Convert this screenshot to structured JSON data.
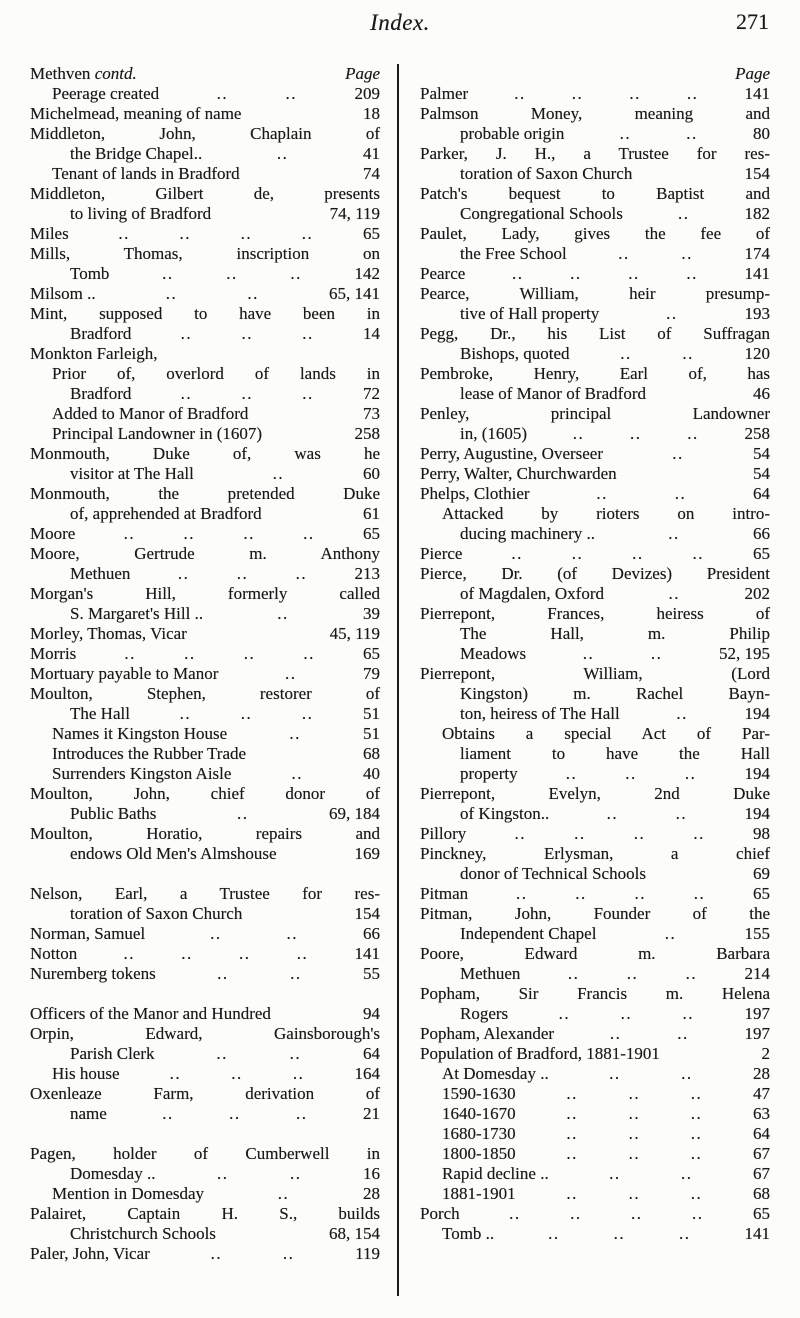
{
  "header": {
    "title": "Index.",
    "page_number": "271"
  },
  "columns": [
    {
      "side": "left",
      "heading": {
        "name": "Methven ",
        "contd": "contd.",
        "page_label": "Page"
      },
      "entries": [
        {
          "t": "Peerage created",
          "i": 1,
          "d": 2,
          "p": "209"
        },
        {
          "t": "Michelmead, meaning of name",
          "i": 0,
          "d": 0,
          "p": "18"
        },
        {
          "t": "Middleton, John, Chaplain of",
          "i": 0,
          "j": 1
        },
        {
          "t": "the Bridge Chapel..",
          "i": 2,
          "d": 1,
          "p": "41"
        },
        {
          "t": "Tenant of lands in Bradford",
          "i": 1,
          "d": 0,
          "p": "74"
        },
        {
          "t": "Middleton, Gilbert de, presents",
          "i": 0,
          "j": 1
        },
        {
          "t": "to living of Bradford",
          "i": 2,
          "d": 0,
          "p": "74, 119"
        },
        {
          "t": "Miles",
          "i": 0,
          "d": 4,
          "p": "65"
        },
        {
          "t": "Mills, Thomas, inscription on",
          "i": 0,
          "j": 1
        },
        {
          "t": "Tomb",
          "i": 2,
          "d": 3,
          "p": "142"
        },
        {
          "t": "Milsom ..",
          "i": 0,
          "d": 2,
          "p": "65, 141"
        },
        {
          "t": "Mint, supposed to have been in",
          "i": 0,
          "j": 1
        },
        {
          "t": "Bradford",
          "i": 2,
          "d": 3,
          "p": "14"
        },
        {
          "t": "Monkton Farleigh,",
          "i": 0
        },
        {
          "t": "Prior of, overlord of lands in",
          "i": 1,
          "j": 1
        },
        {
          "t": "Bradford",
          "i": 2,
          "d": 3,
          "p": "72"
        },
        {
          "t": "Added to Manor of Bradford",
          "i": 1,
          "d": 0,
          "p": "73"
        },
        {
          "t": "Principal Landowner in (1607)",
          "i": 1,
          "d": 0,
          "p": "258"
        },
        {
          "t": "Monmouth, Duke of, was he",
          "i": 0,
          "j": 1
        },
        {
          "t": "visitor at The Hall",
          "i": 2,
          "d": 1,
          "p": "60"
        },
        {
          "t": "Monmouth, the pretended Duke",
          "i": 0,
          "j": 1
        },
        {
          "t": "of, apprehended at Bradford",
          "i": 2,
          "d": 0,
          "p": "61"
        },
        {
          "t": "Moore",
          "i": 0,
          "d": 4,
          "p": "65"
        },
        {
          "t": "Moore, Gertrude m. Anthony",
          "i": 0,
          "j": 1
        },
        {
          "t": "Methuen",
          "i": 2,
          "d": 3,
          "p": "213"
        },
        {
          "t": "Morgan's Hill, formerly called",
          "i": 0,
          "j": 1
        },
        {
          "t": "S. Margaret's Hill ..",
          "i": 2,
          "d": 1,
          "p": "39"
        },
        {
          "t": "Morley, Thomas, Vicar",
          "i": 0,
          "d": 0,
          "p": "45, 119"
        },
        {
          "t": "Morris",
          "i": 0,
          "d": 4,
          "p": "65"
        },
        {
          "t": "Mortuary payable to Manor",
          "i": 0,
          "d": 1,
          "p": "79"
        },
        {
          "t": "Moulton, Stephen, restorer of",
          "i": 0,
          "j": 1
        },
        {
          "t": "The Hall",
          "i": 2,
          "d": 3,
          "p": "51"
        },
        {
          "t": "Names it Kingston House",
          "i": 1,
          "d": 1,
          "p": "51"
        },
        {
          "t": "Introduces the Rubber Trade",
          "i": 1,
          "d": 0,
          "p": "68"
        },
        {
          "t": "Surrenders Kingston Aisle",
          "i": 1,
          "d": 1,
          "p": "40"
        },
        {
          "t": "Moulton, John, chief donor of",
          "i": 0,
          "j": 1
        },
        {
          "t": "Public Baths",
          "i": 2,
          "d": 1,
          "p": "69, 184"
        },
        {
          "t": "Moulton, Horatio, repairs and",
          "i": 0,
          "j": 1
        },
        {
          "t": "endows Old Men's Almshouse",
          "i": 2,
          "d": 0,
          "p": "169"
        },
        {
          "gap": true
        },
        {
          "t": "Nelson, Earl, a Trustee for res-",
          "i": 0,
          "j": 1
        },
        {
          "t": "toration of Saxon Church",
          "i": 2,
          "d": 0,
          "p": "154"
        },
        {
          "t": "Norman, Samuel",
          "i": 0,
          "d": 2,
          "p": "66"
        },
        {
          "t": "Notton",
          "i": 0,
          "d": 4,
          "p": "141"
        },
        {
          "t": "Nuremberg tokens",
          "i": 0,
          "d": 2,
          "p": "55"
        },
        {
          "gap": true
        },
        {
          "t": "Officers of the Manor and Hundred",
          "i": 0,
          "d": 0,
          "p": "94"
        },
        {
          "t": "Orpin, Edward, Gainsborough's",
          "i": 0,
          "j": 1
        },
        {
          "t": "Parish Clerk",
          "i": 2,
          "d": 2,
          "p": "64"
        },
        {
          "t": "His house",
          "i": 1,
          "d": 3,
          "p": "164"
        },
        {
          "t": "Oxenleaze Farm, derivation of",
          "i": 0,
          "j": 1
        },
        {
          "t": "name",
          "i": 2,
          "d": 3,
          "p": "21"
        },
        {
          "gap": true
        },
        {
          "t": "Pagen, holder of Cumberwell in",
          "i": 0,
          "j": 1
        },
        {
          "t": "Domesday ..",
          "i": 2,
          "d": 2,
          "p": "16"
        },
        {
          "t": "Mention in Domesday",
          "i": 1,
          "d": 1,
          "p": "28"
        },
        {
          "t": "Palairet, Captain H. S., builds",
          "i": 0,
          "j": 1
        },
        {
          "t": "Christchurch Schools",
          "i": 2,
          "d": 0,
          "p": "68, 154"
        },
        {
          "t": "Paler, John, Vicar",
          "i": 0,
          "d": 2,
          "p": "119"
        }
      ]
    },
    {
      "side": "right",
      "heading": {
        "name": "",
        "contd": "",
        "page_label": "Page"
      },
      "entries": [
        {
          "t": "Palmer",
          "i": 0,
          "d": 4,
          "p": "141"
        },
        {
          "t": "Palmson Money, meaning and",
          "i": 0,
          "j": 1
        },
        {
          "t": "probable origin",
          "i": 2,
          "d": 2,
          "p": "80"
        },
        {
          "t": "Parker, J. H., a Trustee for res-",
          "i": 0,
          "j": 1
        },
        {
          "t": "toration of Saxon Church",
          "i": 2,
          "d": 0,
          "p": "154"
        },
        {
          "t": "Patch's bequest to Baptist and",
          "i": 0,
          "j": 1
        },
        {
          "t": "Congregational Schools",
          "i": 2,
          "d": 1,
          "p": "182"
        },
        {
          "t": "Paulet, Lady, gives the fee of",
          "i": 0,
          "j": 1
        },
        {
          "t": "the Free School",
          "i": 2,
          "d": 2,
          "p": "174"
        },
        {
          "t": "Pearce",
          "i": 0,
          "d": 4,
          "p": "141"
        },
        {
          "t": "Pearce, William, heir presump-",
          "i": 0,
          "j": 1
        },
        {
          "t": "tive of Hall property",
          "i": 2,
          "d": 1,
          "p": "193"
        },
        {
          "t": "Pegg, Dr., his List of Suffragan",
          "i": 0,
          "j": 1
        },
        {
          "t": "Bishops, quoted",
          "i": 2,
          "d": 2,
          "p": "120"
        },
        {
          "t": "Pembroke, Henry, Earl of, has",
          "i": 0,
          "j": 1
        },
        {
          "t": "lease of Manor of Bradford",
          "i": 2,
          "d": 0,
          "p": "46"
        },
        {
          "t": "Penley, principal Landowner",
          "i": 0,
          "j": 1
        },
        {
          "t": "in, (1605)",
          "i": 2,
          "d": 3,
          "p": "258"
        },
        {
          "t": "Perry, Augustine, Overseer",
          "i": 0,
          "d": 1,
          "p": "54"
        },
        {
          "t": "Perry, Walter, Churchwarden",
          "i": 0,
          "d": 0,
          "p": "54"
        },
        {
          "t": "Phelps, Clothier",
          "i": 0,
          "d": 2,
          "p": "64"
        },
        {
          "t": "Attacked by rioters on intro-",
          "i": 1,
          "j": 1
        },
        {
          "t": "ducing machinery ..",
          "i": 2,
          "d": 1,
          "p": "66"
        },
        {
          "t": "Pierce",
          "i": 0,
          "d": 4,
          "p": "65"
        },
        {
          "t": "Pierce, Dr. (of Devizes) President",
          "i": 0,
          "j": 1
        },
        {
          "t": "of Magdalen, Oxford",
          "i": 2,
          "d": 1,
          "p": "202"
        },
        {
          "t": "Pierrepont, Frances, heiress of",
          "i": 0,
          "j": 1
        },
        {
          "t": "The Hall, m. Philip",
          "i": 2,
          "j": 1
        },
        {
          "t": "Meadows",
          "i": 2,
          "d": 2,
          "p": "52, 195"
        },
        {
          "t": "Pierrepont, William, (Lord",
          "i": 0,
          "j": 1
        },
        {
          "t": "Kingston) m. Rachel Bayn-",
          "i": 2,
          "j": 1
        },
        {
          "t": "ton, heiress of The Hall",
          "i": 2,
          "d": 1,
          "p": "194"
        },
        {
          "t": "Obtains a special Act of Par-",
          "i": 1,
          "j": 1
        },
        {
          "t": "liament to have the Hall",
          "i": 2,
          "j": 1
        },
        {
          "t": "property",
          "i": 2,
          "d": 3,
          "p": "194"
        },
        {
          "t": "Pierrepont, Evelyn, 2nd Duke",
          "i": 0,
          "j": 1
        },
        {
          "t": "of Kingston..",
          "i": 2,
          "d": 2,
          "p": "194"
        },
        {
          "t": "Pillory",
          "i": 0,
          "d": 4,
          "p": "98"
        },
        {
          "t": "Pinckney, Erlysman, a chief",
          "i": 0,
          "j": 1
        },
        {
          "t": "donor of Technical Schools",
          "i": 2,
          "d": 0,
          "p": "69"
        },
        {
          "t": "Pitman",
          "i": 0,
          "d": 4,
          "p": "65"
        },
        {
          "t": "Pitman, John, Founder of the",
          "i": 0,
          "j": 1
        },
        {
          "t": "Independent Chapel",
          "i": 2,
          "d": 1,
          "p": "155"
        },
        {
          "t": "Poore, Edward m. Barbara",
          "i": 0,
          "j": 1
        },
        {
          "t": "Methuen",
          "i": 2,
          "d": 3,
          "p": "214"
        },
        {
          "t": "Popham, Sir Francis m. Helena",
          "i": 0,
          "j": 1
        },
        {
          "t": "Rogers",
          "i": 2,
          "d": 3,
          "p": "197"
        },
        {
          "t": "Popham, Alexander",
          "i": 0,
          "d": 2,
          "p": "197"
        },
        {
          "t": "Population of Bradford, 1881-1901",
          "i": 0,
          "d": 0,
          "p": "2"
        },
        {
          "t": "At Domesday ..",
          "i": 1,
          "d": 2,
          "p": "28"
        },
        {
          "t": "1590-1630",
          "i": 1,
          "d": 3,
          "p": "47"
        },
        {
          "t": "1640-1670",
          "i": 1,
          "d": 3,
          "p": "63"
        },
        {
          "t": "1680-1730",
          "i": 1,
          "d": 3,
          "p": "64"
        },
        {
          "t": "1800-1850",
          "i": 1,
          "d": 3,
          "p": "67"
        },
        {
          "t": "Rapid decline ..",
          "i": 1,
          "d": 2,
          "p": "67"
        },
        {
          "t": "1881-1901",
          "i": 1,
          "d": 3,
          "p": "68"
        },
        {
          "t": "Porch",
          "i": 0,
          "d": 4,
          "p": "65"
        },
        {
          "t": "Tomb ..",
          "i": 1,
          "d": 3,
          "p": "141"
        }
      ]
    }
  ]
}
